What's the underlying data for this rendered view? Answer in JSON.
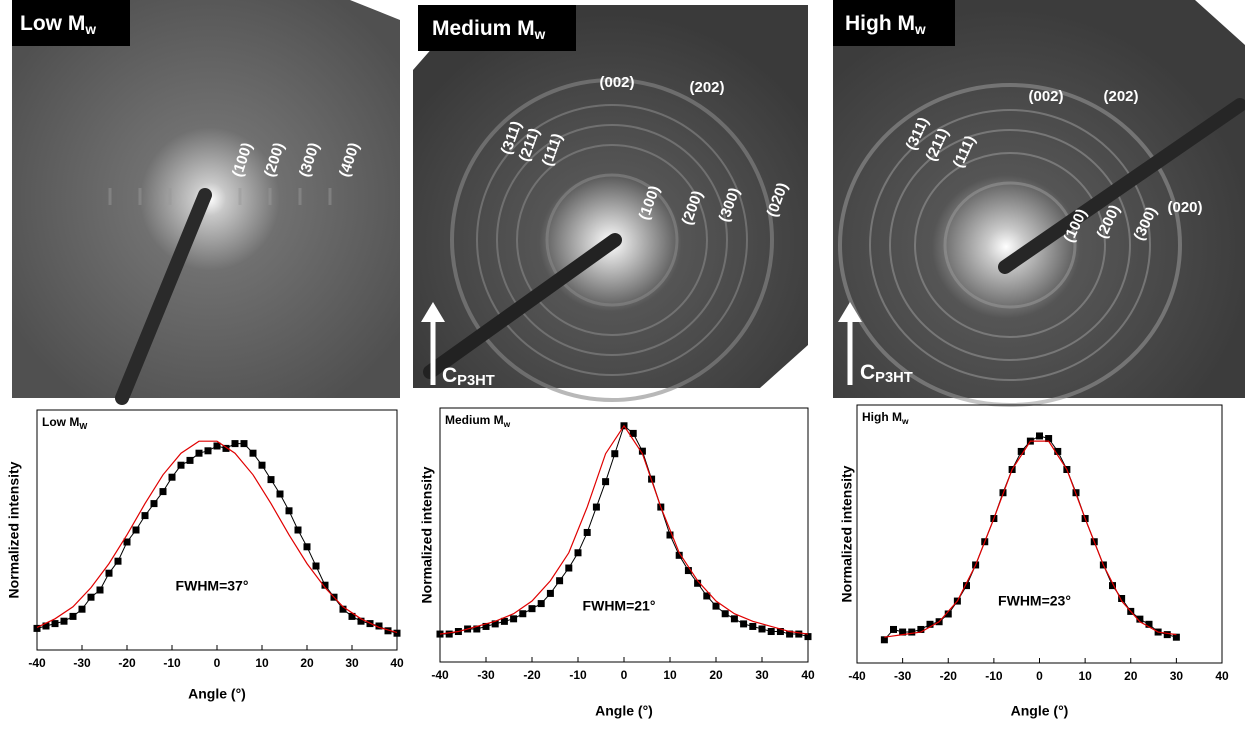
{
  "images": [
    {
      "title": "Low M",
      "title_sub": "w",
      "reflections": [
        "(100)",
        "(200)",
        "(300)",
        "(400)"
      ]
    },
    {
      "title": "Medium M",
      "title_sub": "w",
      "reflections": [
        "(002)",
        "(202)",
        "(311)",
        "(211)",
        "(111)",
        "(100)",
        "(200)",
        "(300)",
        "(020)"
      ],
      "axis_label": "C",
      "axis_label_sub": "P3HT"
    },
    {
      "title": "High M",
      "title_sub": "w",
      "reflections": [
        "(002)",
        "(202)",
        "(311)",
        "(211)",
        "(111)",
        "(100)",
        "(200)",
        "(300)",
        "(020)"
      ],
      "axis_label": "C",
      "axis_label_sub": "P3HT"
    }
  ],
  "chart_data": [
    {
      "type": "line",
      "title": "Low M",
      "title_sub": "W",
      "xlabel": "Angle (°)",
      "ylabel": "Normalized intensity",
      "annotation": "FWHM=37°",
      "xlim": [
        -40,
        40
      ],
      "xticks": [
        -40,
        -30,
        -20,
        -10,
        0,
        10,
        20,
        30,
        40
      ],
      "ylim": [
        0,
        1
      ],
      "series": [
        {
          "color": "#000000",
          "marker": "square",
          "x": [
            -40,
            -38,
            -36,
            -34,
            -32,
            -30,
            -28,
            -26,
            -24,
            -22,
            -20,
            -18,
            -16,
            -14,
            -12,
            -10,
            -8,
            -6,
            -4,
            -2,
            0,
            2,
            4,
            6,
            8,
            10,
            12,
            14,
            16,
            18,
            20,
            22,
            24,
            26,
            28,
            30,
            32,
            34,
            36,
            38,
            40
          ],
          "values": [
            0.09,
            0.1,
            0.11,
            0.12,
            0.14,
            0.17,
            0.22,
            0.25,
            0.32,
            0.37,
            0.45,
            0.5,
            0.56,
            0.61,
            0.66,
            0.72,
            0.77,
            0.79,
            0.82,
            0.83,
            0.85,
            0.84,
            0.86,
            0.86,
            0.82,
            0.77,
            0.71,
            0.65,
            0.58,
            0.5,
            0.43,
            0.35,
            0.27,
            0.22,
            0.17,
            0.14,
            0.12,
            0.11,
            0.1,
            0.08,
            0.07
          ]
        },
        {
          "color": "#e00000",
          "x": [
            -40,
            -36,
            -32,
            -28,
            -24,
            -20,
            -16,
            -12,
            -8,
            -4,
            0,
            4,
            8,
            12,
            16,
            20,
            24,
            28,
            32,
            36,
            40
          ],
          "values": [
            0.094,
            0.13,
            0.18,
            0.26,
            0.36,
            0.48,
            0.61,
            0.73,
            0.82,
            0.87,
            0.87,
            0.82,
            0.73,
            0.61,
            0.48,
            0.36,
            0.26,
            0.18,
            0.13,
            0.094,
            0.073
          ]
        }
      ]
    },
    {
      "type": "line",
      "title": "Medium M",
      "title_sub": "w",
      "xlabel": "Angle (°)",
      "ylabel": "Normalized intensity",
      "annotation": "FWHM=21°",
      "xlim": [
        -40,
        40
      ],
      "xticks": [
        -40,
        -30,
        -20,
        -10,
        0,
        10,
        20,
        30,
        40
      ],
      "ylim": [
        0,
        1
      ],
      "series": [
        {
          "color": "#000000",
          "marker": "square",
          "x": [
            -40,
            -38,
            -36,
            -34,
            -32,
            -30,
            -28,
            -26,
            -24,
            -22,
            -20,
            -18,
            -16,
            -14,
            -12,
            -10,
            -8,
            -6,
            -4,
            -2,
            0,
            2,
            4,
            6,
            8,
            10,
            12,
            14,
            16,
            18,
            20,
            22,
            24,
            26,
            28,
            30,
            32,
            34,
            36,
            38,
            40
          ],
          "values": [
            0.11,
            0.11,
            0.12,
            0.13,
            0.13,
            0.14,
            0.15,
            0.16,
            0.17,
            0.19,
            0.21,
            0.23,
            0.27,
            0.32,
            0.37,
            0.43,
            0.51,
            0.61,
            0.71,
            0.82,
            0.93,
            0.9,
            0.83,
            0.72,
            0.61,
            0.5,
            0.42,
            0.36,
            0.31,
            0.26,
            0.22,
            0.19,
            0.17,
            0.15,
            0.14,
            0.13,
            0.12,
            0.12,
            0.11,
            0.11,
            0.1
          ]
        },
        {
          "color": "#e00000",
          "x": [
            -40,
            -36,
            -32,
            -28,
            -24,
            -20,
            -16,
            -12,
            -8,
            -4,
            0,
            4,
            8,
            12,
            16,
            20,
            24,
            28,
            32,
            36,
            40
          ],
          "values": [
            0.11,
            0.12,
            0.14,
            0.16,
            0.19,
            0.24,
            0.32,
            0.43,
            0.61,
            0.82,
            0.93,
            0.82,
            0.61,
            0.43,
            0.32,
            0.24,
            0.19,
            0.16,
            0.14,
            0.12,
            0.11
          ]
        }
      ]
    },
    {
      "type": "line",
      "title": "High M",
      "title_sub": "w",
      "xlabel": "Angle (°)",
      "ylabel": "Normalized intensity",
      "annotation": "FWHM=23°",
      "xlim": [
        -40,
        40
      ],
      "xticks": [
        -40,
        -30,
        -20,
        -10,
        0,
        10,
        20,
        30,
        40
      ],
      "ylim": [
        0,
        1
      ],
      "series": [
        {
          "color": "#000000",
          "marker": "square",
          "x": [
            -34,
            -32,
            -30,
            -28,
            -26,
            -24,
            -22,
            -20,
            -18,
            -16,
            -14,
            -12,
            -10,
            -8,
            -6,
            -4,
            -2,
            0,
            2,
            4,
            6,
            8,
            10,
            12,
            14,
            16,
            18,
            20,
            22,
            24,
            26,
            28,
            30
          ],
          "values": [
            0.09,
            0.13,
            0.12,
            0.12,
            0.13,
            0.15,
            0.16,
            0.19,
            0.24,
            0.3,
            0.38,
            0.47,
            0.56,
            0.66,
            0.75,
            0.82,
            0.86,
            0.88,
            0.87,
            0.82,
            0.75,
            0.66,
            0.56,
            0.47,
            0.38,
            0.3,
            0.25,
            0.2,
            0.17,
            0.15,
            0.12,
            0.11,
            0.1
          ]
        },
        {
          "color": "#e00000",
          "x": [
            -34,
            -30,
            -26,
            -22,
            -18,
            -14,
            -10,
            -6,
            -2,
            2,
            6,
            10,
            14,
            18,
            22,
            26,
            30
          ],
          "values": [
            0.1,
            0.11,
            0.12,
            0.16,
            0.24,
            0.38,
            0.56,
            0.75,
            0.86,
            0.86,
            0.75,
            0.56,
            0.38,
            0.24,
            0.16,
            0.12,
            0.11
          ]
        }
      ]
    }
  ]
}
